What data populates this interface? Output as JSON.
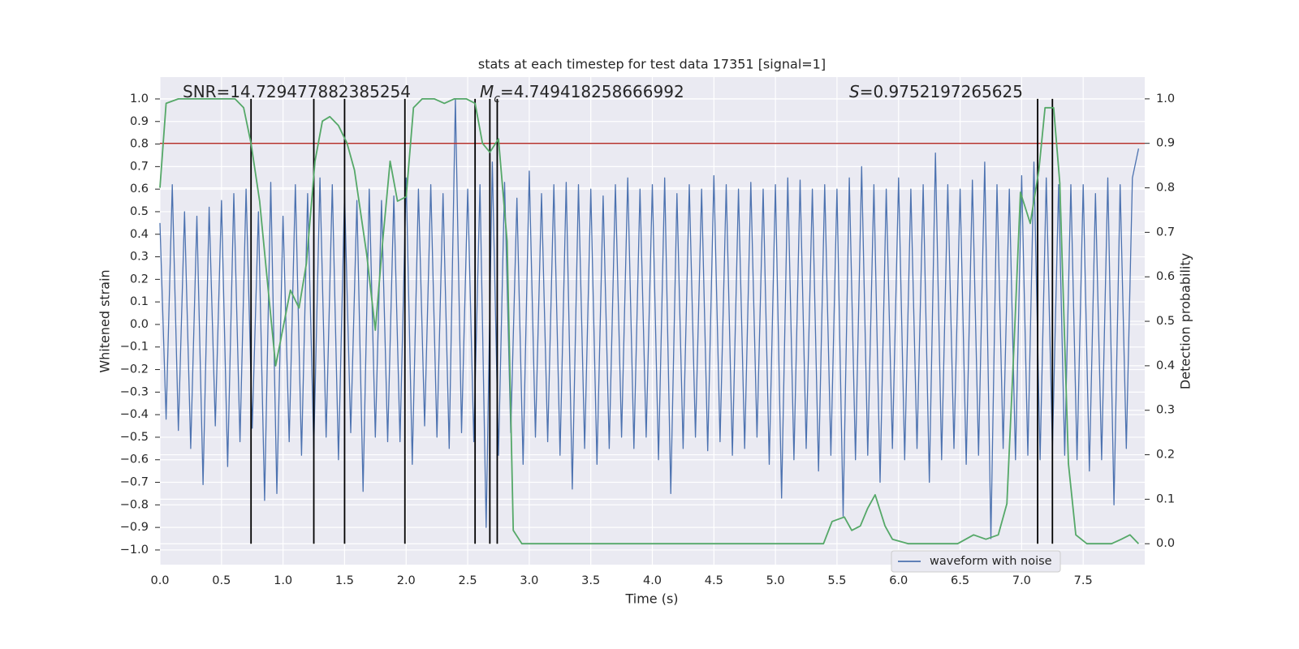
{
  "chart_data": {
    "type": "line",
    "title": "stats at each timestep for test data 17351 [signal=1]",
    "xlabel": "Time (s)",
    "ylabel": "Whitened strain",
    "y2label": "Detection probability",
    "xlim": [
      0,
      8.0
    ],
    "ylim": [
      -1.065,
      1.097
    ],
    "y2lim": [
      -0.047,
      1.049
    ],
    "xticks": [
      {
        "value": 0,
        "label": "0.0"
      },
      0.5,
      {
        "value": 1,
        "label": "1.0"
      },
      1.5,
      {
        "value": 2,
        "label": "2.0"
      },
      2.5,
      {
        "value": 3,
        "label": "3.0"
      },
      3.5,
      {
        "value": 4,
        "label": "4.0"
      },
      4.5,
      {
        "value": 5,
        "label": "5.0"
      },
      5.5,
      {
        "value": 6,
        "label": "6.0"
      },
      6.5,
      {
        "value": 7,
        "label": "7.0"
      },
      7.5
    ],
    "yticks": [
      {
        "value": -1,
        "label": "−1.0"
      },
      {
        "value": -0.9,
        "label": "−0.9"
      },
      {
        "value": -0.8,
        "label": "−0.8"
      },
      {
        "value": -0.7,
        "label": "−0.7"
      },
      {
        "value": -0.6,
        "label": "−0.6"
      },
      {
        "value": -0.5,
        "label": "−0.5"
      },
      {
        "value": -0.4,
        "label": "−0.4"
      },
      {
        "value": -0.3,
        "label": "−0.3"
      },
      {
        "value": -0.2,
        "label": "−0.2"
      },
      {
        "value": -0.1,
        "label": "−0.1"
      },
      {
        "value": 0,
        "label": "0.0"
      },
      0.1,
      0.2,
      0.3,
      0.4,
      0.5,
      0.6,
      0.7,
      0.8,
      0.9,
      {
        "value": 1,
        "label": "1.0"
      }
    ],
    "y2ticks": [
      {
        "value": 0,
        "label": "0.0"
      },
      0.1,
      0.2,
      0.3,
      0.4,
      0.5,
      0.6,
      0.7,
      0.8,
      0.9,
      {
        "value": 1,
        "label": "1.0"
      }
    ],
    "grid": true,
    "background": "#eaeaf2",
    "legend": "lower right",
    "series": [
      {
        "name": "waveform with noise",
        "color": "#4c72b0",
        "axis": "y",
        "x": [
          0,
          0.05,
          0.1,
          0.15,
          0.2,
          0.25,
          0.3,
          0.35,
          0.4,
          0.45,
          0.5,
          0.55,
          0.6,
          0.65,
          0.7,
          0.75,
          0.8,
          0.85,
          0.9,
          0.95,
          1,
          1.05,
          1.1,
          1.15,
          1.2,
          1.25,
          1.3,
          1.35,
          1.4,
          1.45,
          1.5,
          1.55,
          1.6,
          1.65,
          1.7,
          1.75,
          1.8,
          1.85,
          1.9,
          1.95,
          2,
          2.05,
          2.1,
          2.15,
          2.2,
          2.25,
          2.3,
          2.35,
          2.4,
          2.45,
          2.5,
          2.55,
          2.6,
          2.65,
          2.7,
          2.75,
          2.8,
          2.85,
          2.9,
          2.95,
          3,
          3.05,
          3.1,
          3.15,
          3.2,
          3.25,
          3.3,
          3.35,
          3.4,
          3.45,
          3.5,
          3.55,
          3.6,
          3.65,
          3.7,
          3.75,
          3.8,
          3.85,
          3.9,
          3.95,
          4,
          4.05,
          4.1,
          4.15,
          4.2,
          4.25,
          4.3,
          4.35,
          4.4,
          4.45,
          4.5,
          4.55,
          4.6,
          4.65,
          4.7,
          4.75,
          4.8,
          4.85,
          4.9,
          4.95,
          5,
          5.05,
          5.1,
          5.15,
          5.2,
          5.25,
          5.3,
          5.35,
          5.4,
          5.45,
          5.5,
          5.55,
          5.6,
          5.65,
          5.7,
          5.75,
          5.8,
          5.85,
          5.9,
          5.95,
          6,
          6.05,
          6.1,
          6.15,
          6.2,
          6.25,
          6.3,
          6.35,
          6.4,
          6.45,
          6.5,
          6.55,
          6.6,
          6.65,
          6.7,
          6.75,
          6.8,
          6.85,
          6.9,
          6.95,
          7,
          7.05,
          7.1,
          7.15,
          7.2,
          7.25,
          7.3,
          7.35,
          7.4,
          7.45,
          7.5,
          7.55,
          7.6,
          7.65,
          7.7,
          7.75,
          7.8,
          7.85,
          7.9,
          7.95
        ],
        "values": [
          0.45,
          -0.42,
          0.62,
          -0.47,
          0.5,
          -0.55,
          0.48,
          -0.71,
          0.52,
          -0.45,
          0.55,
          -0.63,
          0.58,
          -0.52,
          0.6,
          -0.46,
          0.5,
          -0.78,
          0.63,
          -0.75,
          0.48,
          -0.52,
          0.62,
          -0.58,
          0.58,
          -0.55,
          0.65,
          -0.5,
          0.62,
          -0.6,
          0.58,
          -0.48,
          0.55,
          -0.74,
          0.6,
          -0.5,
          0.55,
          -0.52,
          0.57,
          -0.52,
          0.65,
          -0.62,
          0.6,
          -0.45,
          0.62,
          -0.5,
          0.58,
          -0.55,
          1.0,
          -0.48,
          0.6,
          -0.52,
          0.62,
          -0.9,
          0.72,
          -0.58,
          0.63,
          -0.48,
          0.56,
          -0.62,
          0.68,
          -0.5,
          0.58,
          -0.52,
          0.62,
          -0.58,
          0.63,
          -0.73,
          0.62,
          -0.55,
          0.6,
          -0.62,
          0.57,
          -0.55,
          0.62,
          -0.5,
          0.65,
          -0.55,
          0.6,
          -0.5,
          0.62,
          -0.6,
          0.65,
          -0.75,
          0.58,
          -0.55,
          0.62,
          -0.5,
          0.6,
          -0.56,
          0.66,
          -0.52,
          0.62,
          -0.58,
          0.6,
          -0.55,
          0.63,
          -0.5,
          0.6,
          -0.62,
          0.62,
          -0.77,
          0.65,
          -0.6,
          0.64,
          -0.55,
          0.6,
          -0.65,
          0.62,
          -0.58,
          0.6,
          -0.85,
          0.65,
          -0.6,
          0.7,
          -0.58,
          0.62,
          -0.7,
          0.6,
          -0.55,
          0.65,
          -0.6,
          0.6,
          -0.55,
          0.62,
          -0.7,
          0.76,
          -0.6,
          0.62,
          -0.55,
          0.6,
          -0.62,
          0.64,
          -0.58,
          0.72,
          -0.95,
          0.62,
          -0.55,
          0.6,
          -0.6,
          0.66,
          -0.58,
          0.72,
          -0.6,
          0.65,
          -0.55,
          0.62,
          -0.58,
          0.62,
          -0.6,
          0.62,
          -0.65,
          0.58,
          -0.6,
          0.65,
          -0.8,
          0.62,
          -0.55,
          0.65,
          0.78
        ]
      },
      {
        "color": "#55a868",
        "axis": "y2",
        "x": [
          0,
          0.05,
          0.15,
          0.61,
          0.68,
          0.74,
          0.81,
          0.88,
          0.94,
          1.06,
          1.13,
          1.19,
          1.26,
          1.32,
          1.38,
          1.45,
          1.52,
          1.58,
          1.68,
          1.75,
          1.81,
          1.87,
          1.93,
          2.0,
          2.06,
          2.13,
          2.23,
          2.31,
          2.39,
          2.49,
          2.56,
          2.62,
          2.68,
          2.75,
          2.82,
          2.87,
          2.94,
          3.5,
          4.5,
          5.39,
          5.46,
          5.56,
          5.62,
          5.69,
          5.75,
          5.81,
          5.89,
          5.95,
          6.08,
          6.48,
          6.61,
          6.71,
          6.81,
          6.88,
          6.94,
          6.99,
          7.07,
          7.14,
          7.19,
          7.26,
          7.31,
          7.38,
          7.44,
          7.53,
          7.73,
          7.81,
          7.88,
          7.95
        ],
        "values": [
          0.8,
          0.99,
          1.0,
          1.0,
          0.98,
          0.9,
          0.77,
          0.57,
          0.4,
          0.57,
          0.53,
          0.63,
          0.86,
          0.95,
          0.96,
          0.94,
          0.9,
          0.84,
          0.65,
          0.48,
          0.68,
          0.86,
          0.77,
          0.78,
          0.98,
          1.0,
          1.0,
          0.99,
          1.0,
          1.0,
          0.99,
          0.9,
          0.88,
          0.91,
          0.68,
          0.03,
          0.0,
          0.0,
          0.0,
          0.0,
          0.05,
          0.06,
          0.03,
          0.04,
          0.08,
          0.11,
          0.04,
          0.01,
          0.0,
          0.0,
          0.02,
          0.01,
          0.02,
          0.09,
          0.46,
          0.79,
          0.72,
          0.84,
          0.98,
          0.98,
          0.81,
          0.18,
          0.02,
          0.0,
          0.0,
          0.01,
          0.02,
          0.0
        ]
      }
    ],
    "hlines": [
      {
        "y": 0.9,
        "axis": "y2",
        "color": "#b2312c"
      }
    ],
    "vlines": {
      "x": [
        0.74,
        1.25,
        1.5,
        1.99,
        2.56,
        2.68,
        2.74,
        7.13,
        7.25
      ],
      "ymin": 0,
      "ymax": 1,
      "axis": "y2",
      "color": "#000000"
    },
    "annotations": [
      {
        "parts": [
          "SNR=14.729477882385254"
        ]
      },
      {
        "parts": [
          "M",
          "c",
          "=4.749418258666992"
        ]
      },
      {
        "parts": [
          "S",
          "=0.9752197265625"
        ]
      }
    ]
  }
}
